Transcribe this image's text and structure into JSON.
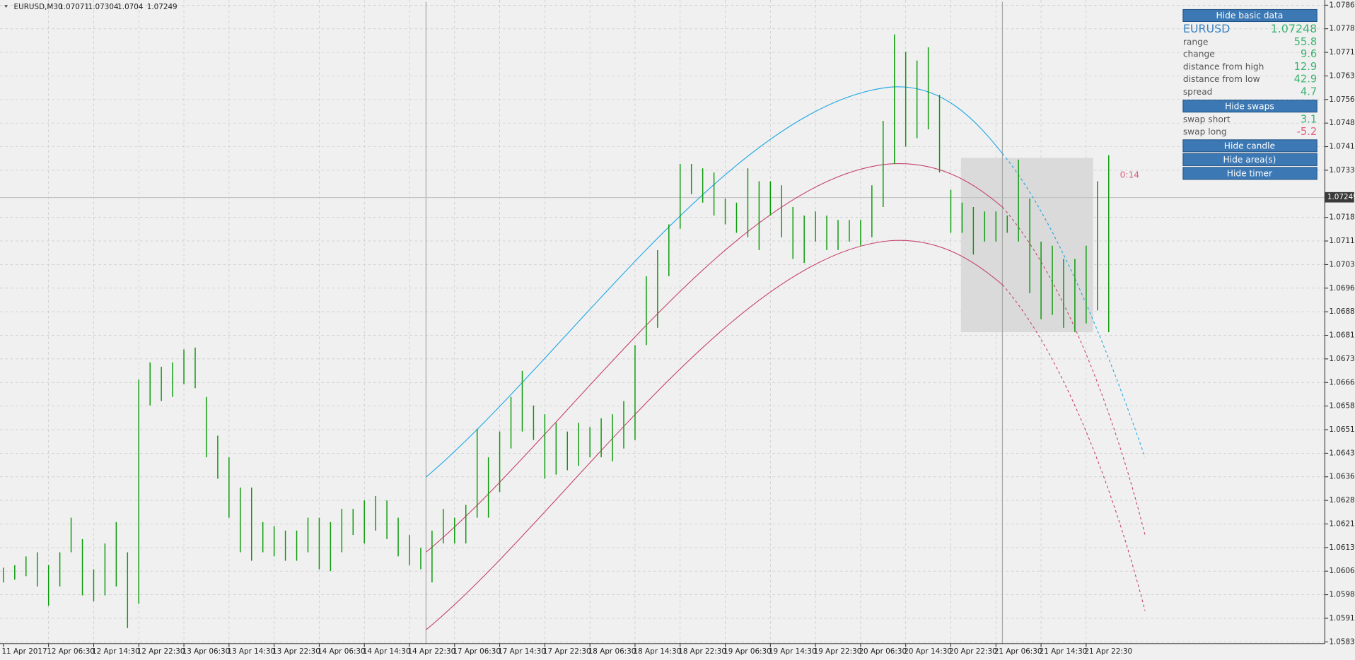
{
  "chart_data": {
    "type": "ohlc",
    "header": {
      "symbol": "EURUSD,M30",
      "ohlc": [
        1.07071,
        1.07304,
        1.0704,
        1.07249
      ]
    },
    "current_price": 1.07249,
    "timer": "0:14",
    "color": "#0a9a0a",
    "grid": true,
    "ylim": [
      1.05835,
      1.0786
    ],
    "yticks": [
      {
        "value": 1.0786,
        "label": "1.07860"
      },
      1.07785,
      {
        "value": 1.0771,
        "label": "1.07710"
      },
      1.07635,
      {
        "value": 1.0756,
        "label": "1.07560"
      },
      1.07485,
      {
        "value": 1.0741,
        "label": "1.07410"
      },
      1.07335,
      1.07185,
      {
        "value": 1.0711,
        "label": "1.07110"
      },
      1.07035,
      {
        "value": 1.0696,
        "label": "1.06960"
      },
      1.06885,
      {
        "value": 1.0681,
        "label": "1.06810"
      },
      1.06735,
      {
        "value": 1.0666,
        "label": "1.06660"
      },
      1.06585,
      {
        "value": 1.0651,
        "label": "1.06510"
      },
      1.06435,
      {
        "value": 1.0636,
        "label": "1.06360"
      },
      1.06285,
      {
        "value": 1.0621,
        "label": "1.06210"
      },
      1.06135,
      {
        "value": 1.0606,
        "label": "1.06060"
      },
      1.05985,
      {
        "value": 1.0591,
        "label": "1.05910"
      },
      1.05835
    ],
    "categories": [
      "11 Apr 2017",
      null,
      null,
      null,
      "12 Apr 06:30",
      null,
      null,
      null,
      "12 Apr 14:30",
      null,
      null,
      null,
      "12 Apr 22:30",
      null,
      null,
      null,
      "13 Apr 06:30",
      null,
      null,
      null,
      "13 Apr 14:30",
      null,
      null,
      null,
      "13 Apr 22:30",
      null,
      null,
      null,
      "14 Apr 06:30",
      null,
      null,
      null,
      "14 Apr 14:30",
      null,
      null,
      null,
      "14 Apr 22:30",
      null,
      null,
      null,
      "17 Apr 06:30",
      null,
      null,
      null,
      "17 Apr 14:30",
      null,
      null,
      null,
      "17 Apr 22:30",
      null,
      null,
      null,
      "18 Apr 06:30",
      null,
      null,
      null,
      "18 Apr 14:30",
      null,
      null,
      null,
      "18 Apr 22:30",
      null,
      null,
      null,
      "19 Apr 06:30",
      null,
      null,
      null,
      "19 Apr 14:30",
      null,
      null,
      null,
      "19 Apr 22:30",
      null,
      null,
      null,
      "20 Apr 06:30",
      null,
      null,
      null,
      "20 Apr 14:30",
      null,
      null,
      null,
      "20 Apr 22:30",
      null,
      null,
      null,
      "21 Apr 06:30",
      null,
      null,
      null,
      "21 Apr 14:30",
      null,
      null,
      null,
      "21 Apr 22:30",
      null,
      null
    ],
    "high": [
      1.06071,
      1.06079,
      1.06107,
      1.0612,
      1.06079,
      1.0612,
      1.0623,
      1.06162,
      1.06066,
      1.06148,
      1.06216,
      1.0612,
      1.06669,
      1.06724,
      1.0671,
      1.06724,
      1.06765,
      1.06771,
      1.06614,
      1.06491,
      1.06422,
      1.06326,
      1.06326,
      1.06216,
      1.06203,
      1.06189,
      1.06189,
      1.0623,
      1.0623,
      1.06216,
      1.06258,
      1.06258,
      1.06285,
      1.06299,
      1.06285,
      1.0623,
      1.06175,
      1.06134,
      1.06189,
      1.06258,
      1.0623,
      1.06271,
      1.06513,
      1.06422,
      1.06504,
      1.06614,
      1.06697,
      1.06587,
      1.06559,
      1.06532,
      1.06504,
      1.06532,
      1.06518,
      1.06546,
      1.06559,
      1.06601,
      1.06779,
      1.06998,
      1.07081,
      1.07163,
      1.07355,
      1.07355,
      1.07341,
      1.07328,
      1.07245,
      1.07232,
      1.07341,
      1.073,
      1.073,
      1.07287,
      1.07218,
      1.07191,
      1.07204,
      1.07191,
      1.07177,
      1.07177,
      1.07177,
      1.07287,
      1.07492,
      1.07767,
      1.07712,
      1.07684,
      1.07726,
      1.07575,
      1.07273,
      1.07232,
      1.07218,
      1.07204,
      1.07204,
      1.07191,
      1.07369,
      1.07245,
      1.07108,
      1.07095,
      1.07053,
      1.07053,
      1.07095,
      1.073,
      1.07383
    ],
    "low": [
      1.06024,
      1.06033,
      1.06044,
      1.06011,
      1.0595,
      1.06011,
      1.0612,
      1.05983,
      1.05964,
      1.05983,
      1.06011,
      1.05879,
      1.05956,
      1.06587,
      1.06601,
      1.06614,
      1.06655,
      1.06642,
      1.06422,
      1.06354,
      1.0623,
      1.0612,
      1.06093,
      1.0612,
      1.06107,
      1.06093,
      1.06093,
      1.0612,
      1.06066,
      1.0606,
      1.0612,
      1.06175,
      1.06148,
      1.06189,
      1.06162,
      1.06107,
      1.06079,
      1.06066,
      1.06024,
      1.06148,
      1.06148,
      1.06148,
      1.0623,
      1.0623,
      1.06312,
      1.0645,
      1.06504,
      1.06477,
      1.06354,
      1.06367,
      1.06381,
      1.06395,
      1.06422,
      1.06422,
      1.06409,
      1.0645,
      1.06477,
      1.06779,
      1.06834,
      1.06998,
      1.07149,
      1.07259,
      1.07232,
      1.07191,
      1.07163,
      1.07136,
      1.07122,
      1.07081,
      1.07191,
      1.07122,
      1.07053,
      1.0704,
      1.07108,
      1.07081,
      1.07081,
      1.07108,
      1.07095,
      1.07122,
      1.07218,
      1.07355,
      1.0741,
      1.07437,
      1.07465,
      1.07328,
      1.07136,
      1.07136,
      1.07067,
      1.07108,
      1.07108,
      1.07136,
      1.07108,
      1.06944,
      1.06861,
      1.06875,
      1.06834,
      1.0682,
      1.06848,
      1.06889,
      1.0682
    ]
  },
  "info_panel": {
    "basic_button": "Hide basic data",
    "symbol": "EURUSD",
    "price": 1.07248,
    "rows": [
      [
        "range",
        55.8
      ],
      [
        "change",
        9.6
      ],
      [
        "distance from high",
        12.9
      ],
      [
        "distance from low",
        42.9
      ],
      [
        "spread",
        4.7
      ]
    ],
    "swaps_button": "Hide swaps",
    "swaps": [
      [
        "swap short",
        3.1
      ],
      [
        "swap long",
        -5.2
      ]
    ],
    "buttons": [
      "Hide candle",
      "Hide area(s)",
      "Hide timer"
    ]
  }
}
